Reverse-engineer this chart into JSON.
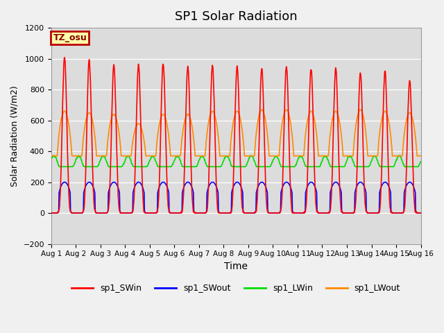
{
  "title": "SP1 Solar Radiation",
  "xlabel": "Time",
  "ylabel": "Solar Radiation (W/m2)",
  "ylim": [
    -200,
    1200
  ],
  "xlim_days": [
    0,
    15
  ],
  "series": {
    "sp1_SWin": {
      "color": "#ff0000",
      "lw": 1.2
    },
    "sp1_SWout": {
      "color": "#0000ff",
      "lw": 1.2
    },
    "sp1_LWin": {
      "color": "#00dd00",
      "lw": 1.2
    },
    "sp1_LWout": {
      "color": "#ff8800",
      "lw": 1.2
    }
  },
  "tz_label": "TZ_osu",
  "yticks": [
    -200,
    0,
    200,
    400,
    600,
    800,
    1000,
    1200
  ],
  "xtick_labels": [
    "Aug 1",
    "Aug 2",
    "Aug 3",
    "Aug 4",
    "Aug 5",
    "Aug 6",
    "Aug 7",
    "Aug 8",
    "Aug 9",
    "Aug 10",
    "Aug 11",
    "Aug 12",
    "Aug 13",
    "Aug 14",
    "Aug 15",
    "Aug 16"
  ],
  "background_color": "#dcdcdc",
  "figure_bg": "#f0f0f0",
  "SWin_peaks": [
    1010,
    990,
    960,
    960,
    970,
    950,
    960,
    950,
    940,
    950,
    940,
    940,
    910,
    920,
    860
  ],
  "LWout_day_peaks": [
    660,
    650,
    640,
    580,
    640,
    640,
    660,
    660,
    670,
    670,
    660,
    660,
    670,
    660,
    650
  ],
  "LWout_night": 370,
  "LWin_base": 310,
  "LWin_amp": 50,
  "SWout_peak": 200
}
